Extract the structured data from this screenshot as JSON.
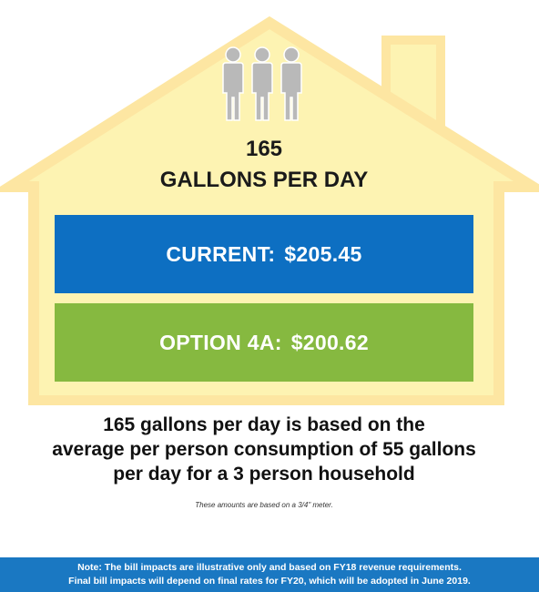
{
  "headline": {
    "number": "165",
    "unit": "GALLONS PER DAY"
  },
  "icons": {
    "people": "three-people-icon"
  },
  "bars": {
    "current": {
      "label": "CURRENT:",
      "amount": "$205.45"
    },
    "option": {
      "label": "OPTION 4A:",
      "amount": "$200.62"
    }
  },
  "explanation": {
    "line1": "165 gallons per day is based on the",
    "line2": "average per person consumption of 55 gallons",
    "line3": "per day for a 3 person household"
  },
  "meter_note": "These amounts are based on a 3/4\" meter.",
  "footer": {
    "line1": "Note: The bill impacts are illustrative only and based on FY18 revenue requirements.",
    "line2": "Final bill impacts will depend on final rates for FY20, which will be adopted in June 2019."
  },
  "colors": {
    "house_fill": "#fdf3b2",
    "house_outline": "#fde6a2",
    "current_bar": "#0d6fc2",
    "option_bar": "#86b940",
    "footer": "#1a78c2",
    "people": "#b9b9b9"
  }
}
